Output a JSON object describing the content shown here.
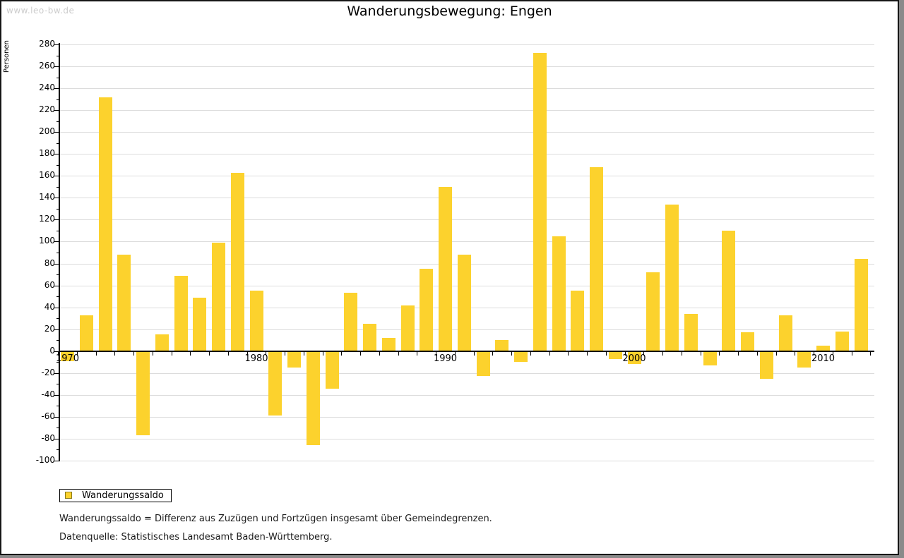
{
  "watermark": "www.leo-bw.de",
  "title": "Wanderungsbewegung: Engen",
  "y_axis_title": "Personen",
  "legend": {
    "label": "Wanderungssaldo"
  },
  "footnotes": {
    "definition": "Wanderungssaldo = Differenz aus Zuzügen und Fortzügen insgesamt über Gemeindegrenzen.",
    "source": "Datenquelle: Statistisches Landesamt Baden-Württemberg."
  },
  "colors": {
    "bar": "#fcd22d",
    "grid": "#dcdcdc",
    "axis": "#000000",
    "watermark": "#cccccc",
    "legend_swatch_border": "#8a7a1a"
  },
  "chart_data": {
    "type": "bar",
    "title": "Wanderungsbewegung: Engen",
    "xlabel": "",
    "ylabel": "Personen",
    "x": [
      1970,
      1971,
      1972,
      1973,
      1974,
      1975,
      1976,
      1977,
      1978,
      1979,
      1980,
      1981,
      1982,
      1983,
      1984,
      1985,
      1986,
      1987,
      1988,
      1989,
      1990,
      1991,
      1992,
      1993,
      1994,
      1995,
      1996,
      1997,
      1998,
      1999,
      2000,
      2001,
      2002,
      2003,
      2004,
      2005,
      2006,
      2007,
      2008,
      2009,
      2010,
      2011,
      2012
    ],
    "series": [
      {
        "name": "Wanderungssaldo",
        "values": [
          -9,
          33,
          232,
          88,
          -77,
          15,
          69,
          49,
          99,
          163,
          55,
          -59,
          -15,
          -86,
          -34,
          53,
          25,
          12,
          42,
          75,
          150,
          88,
          -23,
          10,
          -10,
          272,
          105,
          55,
          168,
          -7,
          -12,
          72,
          134,
          34,
          -13,
          110,
          17,
          -25,
          33,
          -15,
          5,
          18,
          84
        ]
      }
    ],
    "ylim": [
      -100,
      280
    ],
    "ytick_step": 20,
    "ytick_minor_step": 10,
    "xticks_labeled": [
      1970,
      1980,
      1990,
      2000,
      2010
    ],
    "grid": true,
    "legend_position": "bottom-left"
  }
}
